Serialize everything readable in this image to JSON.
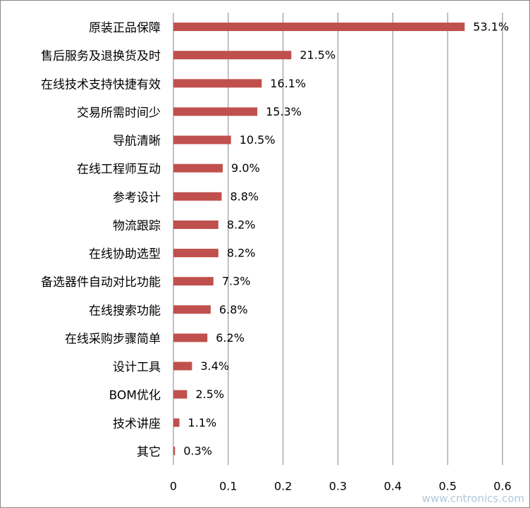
{
  "chart_data": {
    "type": "bar",
    "orientation": "horizontal",
    "categories": [
      "原装正品保障",
      "售后服务及退换货及时",
      "在线技术支持快捷有效",
      "交易所需时间少",
      "导航清晰",
      "在线工程师互动",
      "参考设计",
      "物流跟踪",
      "在线协助选型",
      "备选器件自动对比功能",
      "在线搜索功能",
      "在线采购步骤简单",
      "设计工具",
      "BOM优化",
      "技术讲座",
      "其它"
    ],
    "values": [
      0.531,
      0.215,
      0.161,
      0.153,
      0.105,
      0.09,
      0.088,
      0.082,
      0.082,
      0.073,
      0.068,
      0.062,
      0.034,
      0.025,
      0.011,
      0.003
    ],
    "value_labels": [
      "53.1%",
      "21.5%",
      "16.1%",
      "15.3%",
      "10.5%",
      "9.0%",
      "8.8%",
      "8.2%",
      "8.2%",
      "7.3%",
      "6.8%",
      "6.2%",
      "3.4%",
      "2.5%",
      "1.1%",
      "0.3%"
    ],
    "color": "#c0504d",
    "xlim": [
      0,
      0.6
    ],
    "xticks": [
      0,
      0.1,
      0.2,
      0.3,
      0.4,
      0.5,
      0.6
    ],
    "grid": true
  },
  "watermark": "www.cntronics.com"
}
